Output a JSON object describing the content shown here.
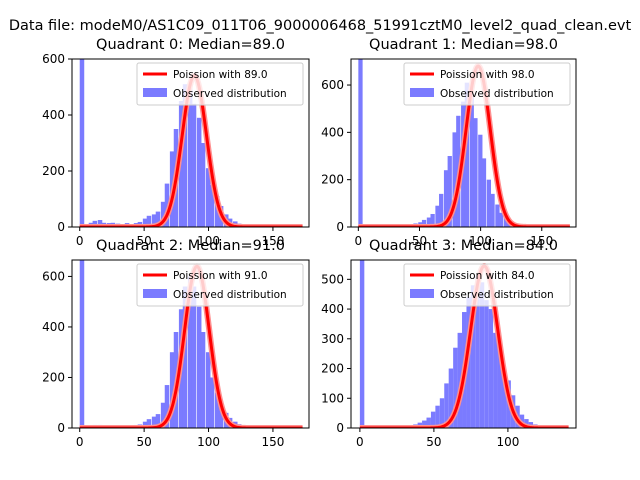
{
  "figure": {
    "suptitle": "Data file: modeM0/AS1C09_011T06_9000006468_51991cztM0_level2_quad_clean.evt",
    "colors": {
      "hist": "#7b7bff",
      "curve_dark": "#ff0000",
      "curve_light": "#ff9090"
    }
  },
  "chart_data": [
    {
      "type": "bar",
      "title": "Quadrant 0: Median=89.0",
      "median": 89.0,
      "xlim": [
        -6,
        178
      ],
      "ylim": [
        0,
        600
      ],
      "xticks": [
        "0",
        "50",
        "100",
        "150"
      ],
      "xtick_values": [
        0,
        50,
        100,
        150
      ],
      "yticks": [
        "0",
        "200",
        "400",
        "600"
      ],
      "ytick_values": [
        0,
        200,
        400,
        600
      ],
      "legend": {
        "curve": "Poission with 89.0",
        "hist": "Observed distribution",
        "loc": "top-right"
      },
      "hist": {
        "bin_width": 3.5,
        "zero_bin_count": 600,
        "x": [
          7,
          10,
          14,
          17,
          21,
          24,
          28,
          31,
          35,
          38,
          42,
          45,
          49,
          52,
          56,
          59,
          63,
          66,
          70,
          73,
          77,
          80,
          84,
          87,
          91,
          94,
          98,
          101,
          105,
          108,
          112,
          115,
          119,
          122,
          126,
          129,
          133,
          136,
          140,
          143
        ],
        "values": [
          15,
          22,
          25,
          15,
          14,
          15,
          12,
          10,
          14,
          10,
          14,
          18,
          30,
          40,
          45,
          55,
          90,
          155,
          270,
          350,
          450,
          510,
          520,
          440,
          390,
          300,
          210,
          150,
          110,
          75,
          45,
          30,
          20,
          12,
          8,
          6,
          4,
          3,
          2,
          1
        ]
      },
      "poisson_mean": 89.0,
      "poisson_peak": 540
    },
    {
      "type": "bar",
      "title": "Quadrant 1: Median=98.0",
      "median": 98.0,
      "xlim": [
        -6,
        178
      ],
      "ylim": [
        0,
        710
      ],
      "xticks": [
        "0",
        "50",
        "100",
        "150"
      ],
      "xtick_values": [
        0,
        50,
        100,
        150
      ],
      "yticks": [
        "0",
        "200",
        "400",
        "600"
      ],
      "ytick_values": [
        0,
        200,
        400,
        600
      ],
      "legend": {
        "curve": "Poission with 98.0",
        "hist": "Observed distribution",
        "loc": "top-right"
      },
      "hist": {
        "bin_width": 3.5,
        "zero_bin_count": 710,
        "x": [
          7,
          10,
          14,
          17,
          21,
          24,
          28,
          31,
          35,
          38,
          42,
          45,
          49,
          52,
          56,
          59,
          63,
          66,
          70,
          73,
          77,
          80,
          84,
          87,
          91,
          94,
          98,
          101,
          105,
          108,
          112,
          115,
          119,
          122,
          126,
          129,
          133,
          136,
          140,
          143
        ],
        "values": [
          4,
          5,
          6,
          5,
          5,
          4,
          5,
          6,
          8,
          10,
          12,
          15,
          20,
          30,
          40,
          55,
          90,
          140,
          240,
          300,
          400,
          470,
          530,
          610,
          570,
          460,
          390,
          290,
          200,
          140,
          95,
          60,
          38,
          22,
          14,
          9,
          6,
          4,
          3,
          2
        ]
      },
      "poisson_mean": 98.0,
      "poisson_peak": 680
    },
    {
      "type": "bar",
      "title": "Quadrant 2: Median=91.0",
      "median": 91.0,
      "xlim": [
        -6,
        178
      ],
      "ylim": [
        0,
        665
      ],
      "xticks": [
        "0",
        "50",
        "100",
        "150"
      ],
      "xtick_values": [
        0,
        50,
        100,
        150
      ],
      "yticks": [
        "0",
        "200",
        "400",
        "600"
      ],
      "ytick_values": [
        0,
        200,
        400,
        600
      ],
      "legend": {
        "curve": "Poission with 91.0",
        "hist": "Observed distribution",
        "loc": "top-right"
      },
      "hist": {
        "bin_width": 3.5,
        "zero_bin_count": 665,
        "x": [
          7,
          10,
          14,
          17,
          21,
          24,
          28,
          31,
          35,
          38,
          42,
          45,
          49,
          52,
          56,
          59,
          63,
          66,
          70,
          73,
          77,
          80,
          84,
          87,
          91,
          94,
          98,
          101,
          105,
          108,
          112,
          115,
          119,
          122,
          126,
          129,
          133,
          136,
          140,
          143
        ],
        "values": [
          10,
          12,
          12,
          10,
          8,
          8,
          10,
          8,
          10,
          10,
          12,
          14,
          25,
          35,
          45,
          55,
          100,
          170,
          300,
          380,
          470,
          560,
          600,
          560,
          480,
          380,
          300,
          200,
          140,
          95,
          60,
          40,
          25,
          15,
          10,
          6,
          4,
          3,
          2,
          1
        ]
      },
      "poisson_mean": 91.0,
      "poisson_peak": 640
    },
    {
      "type": "bar",
      "title": "Quadrant 3: Median=84.0",
      "median": 84.0,
      "xlim": [
        -6,
        146
      ],
      "ylim": [
        0,
        565
      ],
      "xticks": [
        "0",
        "50",
        "100"
      ],
      "xtick_values": [
        0,
        50,
        100
      ],
      "yticks": [
        "0",
        "100",
        "200",
        "300",
        "400",
        "500"
      ],
      "ytick_values": [
        0,
        100,
        200,
        300,
        400,
        500
      ],
      "legend": {
        "curve": "Poission with 84.0",
        "hist": "Observed distribution",
        "loc": "top-right"
      },
      "hist": {
        "bin_width": 3,
        "zero_bin_count": 565,
        "x": [
          6,
          9,
          12,
          15,
          18,
          21,
          24,
          27,
          30,
          33,
          36,
          39,
          42,
          45,
          48,
          51,
          54,
          57,
          60,
          63,
          66,
          69,
          72,
          75,
          78,
          81,
          84,
          87,
          90,
          93,
          96,
          99,
          102,
          105,
          108,
          111,
          114,
          117,
          120,
          123,
          126,
          129
        ],
        "values": [
          5,
          6,
          5,
          4,
          5,
          6,
          5,
          6,
          8,
          10,
          12,
          18,
          25,
          35,
          55,
          75,
          100,
          150,
          200,
          270,
          320,
          390,
          440,
          480,
          510,
          490,
          430,
          400,
          320,
          270,
          200,
          160,
          110,
          75,
          45,
          30,
          20,
          12,
          8,
          5,
          3,
          2
        ]
      },
      "poisson_mean": 84.0,
      "poisson_peak": 545
    }
  ]
}
